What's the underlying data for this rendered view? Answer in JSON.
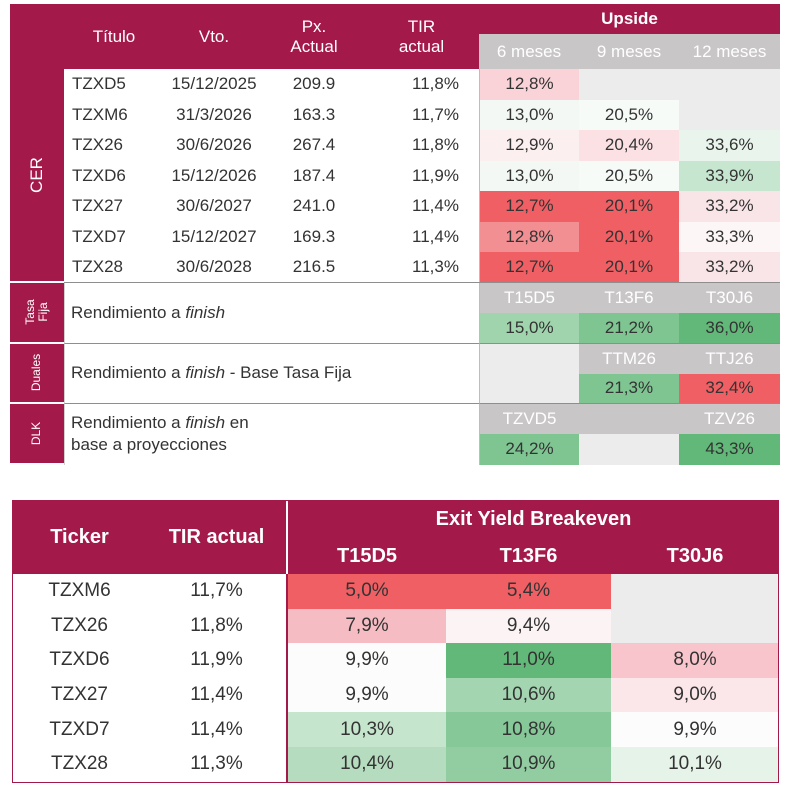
{
  "top_table": {
    "headers": {
      "titulo": "Título",
      "vto": "Vto.",
      "px_actual": "Px. Actual",
      "tir_actual": "TIR actual",
      "upside": "Upside",
      "m6": "6 meses",
      "m9": "9 meses",
      "m12": "12 meses"
    },
    "group_labels": {
      "cer": "CER",
      "tasa_fija": "Tasa Fija",
      "duales": "Duales",
      "dlk": "DLK"
    },
    "cer_rows": [
      {
        "ticker": "TZXD5",
        "vto": "15/12/2025",
        "px": "209.9",
        "tir": "11,8%",
        "m6": "12,8%",
        "m9": "",
        "m12": ""
      },
      {
        "ticker": "TZXM6",
        "vto": "31/3/2026",
        "px": "163.3",
        "tir": "11,7%",
        "m6": "13,0%",
        "m9": "20,5%",
        "m12": ""
      },
      {
        "ticker": "TZX26",
        "vto": "30/6/2026",
        "px": "267.4",
        "tir": "11,8%",
        "m6": "12,9%",
        "m9": "20,4%",
        "m12": "33,6%"
      },
      {
        "ticker": "TZXD6",
        "vto": "15/12/2026",
        "px": "187.4",
        "tir": "11,9%",
        "m6": "13,0%",
        "m9": "20,5%",
        "m12": "33,9%"
      },
      {
        "ticker": "TZX27",
        "vto": "30/6/2027",
        "px": "241.0",
        "tir": "11,4%",
        "m6": "12,7%",
        "m9": "20,1%",
        "m12": "33,2%"
      },
      {
        "ticker": "TZXD7",
        "vto": "15/12/2027",
        "px": "169.3",
        "tir": "11,4%",
        "m6": "12,8%",
        "m9": "20,1%",
        "m12": "33,3%"
      },
      {
        "ticker": "TZX28",
        "vto": "30/6/2028",
        "px": "216.5",
        "tir": "11,3%",
        "m6": "12,7%",
        "m9": "20,1%",
        "m12": "33,2%"
      }
    ],
    "tasa_fija": {
      "desc_pre": "Rendimiento a ",
      "desc_em": "finish",
      "desc_post": "",
      "bond1": "T15D5",
      "bond2": "T13F6",
      "bond3": "T30J6",
      "val1": "15,0%",
      "val2": "21,2%",
      "val3": "36,0%"
    },
    "duales": {
      "desc_pre": "Rendimiento a ",
      "desc_em": "finish",
      "desc_post": " - Base Tasa Fija",
      "bond2": "TTM26",
      "bond3": "TTJ26",
      "val2": "21,3%",
      "val3": "32,4%"
    },
    "dlk": {
      "desc_pre": "Rendimiento a ",
      "desc_em": "finish",
      "desc_post": " en base a proyecciones",
      "bond1": "TZVD5",
      "bond3": "TZV26",
      "val1": "24,2%",
      "val3": "43,3%"
    }
  },
  "bottom_table": {
    "headers": {
      "ticker": "Ticker",
      "tir_actual": "TIR actual",
      "exit_yield": "Exit Yield Breakeven",
      "b1": "T15D5",
      "b2": "T13F6",
      "b3": "T30J6"
    },
    "rows": [
      {
        "ticker": "TZXM6",
        "tir": "11,7%",
        "b1": "5,0%",
        "b2": "5,4%",
        "b3": ""
      },
      {
        "ticker": "TZX26",
        "tir": "11,8%",
        "b1": "7,9%",
        "b2": "9,4%",
        "b3": ""
      },
      {
        "ticker": "TZXD6",
        "tir": "11,9%",
        "b1": "9,9%",
        "b2": "11,0%",
        "b3": "8,0%"
      },
      {
        "ticker": "TZX27",
        "tir": "11,4%",
        "b1": "9,9%",
        "b2": "10,6%",
        "b3": "9,0%"
      },
      {
        "ticker": "TZXD7",
        "tir": "11,4%",
        "b1": "10,3%",
        "b2": "10,8%",
        "b3": "9,9%"
      },
      {
        "ticker": "TZX28",
        "tir": "11,3%",
        "b1": "10,4%",
        "b2": "10,9%",
        "b3": "10,1%"
      }
    ]
  },
  "colors": {
    "brand": "#a31a4a",
    "header_gray": "#c9c6c8",
    "strong_red": "#ef5f63",
    "strong_green": "#62b878"
  }
}
